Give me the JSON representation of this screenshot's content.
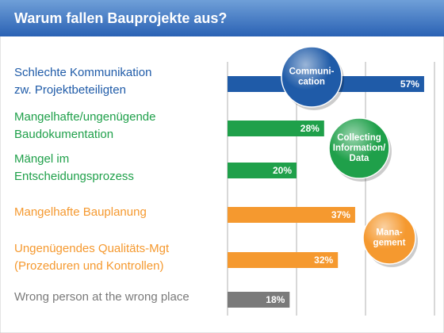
{
  "chart_data": {
    "type": "bar",
    "orientation": "horizontal",
    "title": "Warum fallen Bauprojekte aus?",
    "categories": [
      [
        "Schlechte Kommunikation",
        "zw. Projektbeteiligten"
      ],
      [
        "Mangelhafte/ungenügende",
        "Baudokumentation"
      ],
      [
        "Mängel im",
        "Entscheidungsprozess"
      ],
      [
        "Mangelhafte Bauplanung"
      ],
      [
        "Ungenügendes Qualitäts-Mgt",
        "(Prozeduren und Kontrollen)"
      ],
      [
        "Wrong person at the wrong place"
      ]
    ],
    "values": [
      57,
      28,
      20,
      37,
      32,
      18
    ],
    "value_labels": [
      "57%",
      "28%",
      "20%",
      "37%",
      "32%",
      "18%"
    ],
    "colors": [
      "#1f5ba8",
      "#1fa04a",
      "#1fa04a",
      "#f5992f",
      "#f5992f",
      "#7a7a7a"
    ],
    "xlim": [
      0,
      60
    ],
    "xticks": [
      0,
      20,
      40,
      60
    ],
    "grid": true,
    "annotations": [
      {
        "lines": [
          "Communi-",
          "cation"
        ],
        "color": "#1f5ba8"
      },
      {
        "lines": [
          "Collecting",
          "Information/",
          "Data"
        ],
        "color": "#1fa04a"
      },
      {
        "lines": [
          "Mana-",
          "gement"
        ],
        "color": "#f5992f"
      }
    ]
  }
}
